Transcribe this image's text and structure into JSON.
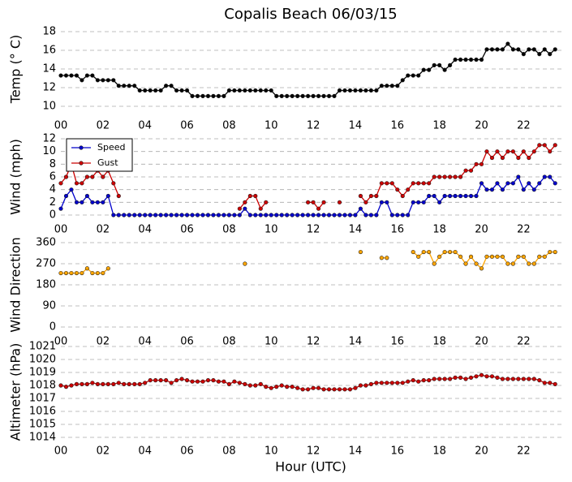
{
  "chart_data": {
    "type": "line",
    "title": "Copalis Beach 06/03/15",
    "xlabel": "Hour (UTC)",
    "xlim": [
      0,
      23.8
    ],
    "xticks": [
      {
        "value": 0,
        "label": "00"
      },
      {
        "value": 2,
        "label": "02"
      },
      {
        "value": 4,
        "label": "04"
      },
      {
        "value": 6,
        "label": "06"
      },
      {
        "value": 8,
        "label": "08"
      },
      {
        "value": 10,
        "label": "10"
      },
      {
        "value": 12,
        "label": "12"
      },
      {
        "value": 14,
        "label": "14"
      },
      {
        "value": 16,
        "label": "16"
      },
      {
        "value": 18,
        "label": "18"
      },
      {
        "value": 20,
        "label": "20"
      },
      {
        "value": 22,
        "label": "22"
      }
    ],
    "grid": true,
    "x": [
      0,
      0.25,
      0.5,
      0.75,
      1,
      1.25,
      1.5,
      1.75,
      2,
      2.25,
      2.5,
      2.75,
      3,
      3.25,
      3.5,
      3.75,
      4,
      4.25,
      4.5,
      4.75,
      5,
      5.25,
      5.5,
      5.75,
      6,
      6.25,
      6.5,
      6.75,
      7,
      7.25,
      7.5,
      7.75,
      8,
      8.25,
      8.5,
      8.75,
      9,
      9.25,
      9.5,
      9.75,
      10,
      10.25,
      10.5,
      10.75,
      11,
      11.25,
      11.5,
      11.75,
      12,
      12.25,
      12.5,
      12.75,
      13,
      13.25,
      13.5,
      13.75,
      14,
      14.25,
      14.5,
      14.75,
      15,
      15.25,
      15.5,
      15.75,
      16,
      16.25,
      16.5,
      16.75,
      17,
      17.25,
      17.5,
      17.75,
      18,
      18.25,
      18.5,
      18.75,
      19,
      19.25,
      19.5,
      19.75,
      20,
      20.25,
      20.5,
      20.75,
      21,
      21.25,
      21.5,
      21.75,
      22,
      22.25,
      22.5,
      22.75,
      23,
      23.25,
      23.5
    ],
    "panels": [
      {
        "ylabel": "Temp (° C)",
        "ylim": [
          10,
          18
        ],
        "yticks": [
          10,
          12,
          14,
          16,
          18
        ],
        "series": [
          {
            "color": "#000000",
            "values": [
              13.3,
              13.3,
              13.3,
              13.3,
              12.8,
              13.3,
              13.3,
              12.8,
              12.8,
              12.8,
              12.8,
              12.2,
              12.2,
              12.2,
              12.2,
              11.7,
              11.7,
              11.7,
              11.7,
              11.7,
              12.2,
              12.2,
              11.7,
              11.7,
              11.7,
              11.1,
              11.1,
              11.1,
              11.1,
              11.1,
              11.1,
              11.1,
              11.7,
              11.7,
              11.7,
              11.7,
              11.7,
              11.7,
              11.7,
              11.7,
              11.7,
              11.1,
              11.1,
              11.1,
              11.1,
              11.1,
              11.1,
              11.1,
              11.1,
              11.1,
              11.1,
              11.1,
              11.1,
              11.7,
              11.7,
              11.7,
              11.7,
              11.7,
              11.7,
              11.7,
              11.7,
              12.2,
              12.2,
              12.2,
              12.2,
              12.8,
              13.3,
              13.3,
              13.3,
              13.9,
              13.9,
              14.4,
              14.4,
              13.9,
              14.4,
              15.0,
              15.0,
              15.0,
              15.0,
              15.0,
              15.0,
              16.1,
              16.1,
              16.1,
              16.1,
              16.7,
              16.1,
              16.1,
              15.6,
              16.1,
              16.1,
              15.6,
              16.1,
              15.6,
              16.1
            ]
          }
        ]
      },
      {
        "ylabel": "Wind (mph)",
        "ylim": [
          0,
          12
        ],
        "yticks": [
          0,
          2,
          4,
          6,
          8,
          10,
          12
        ],
        "legend": "upper left",
        "series": [
          {
            "name": "Speed",
            "color": "#0000cc",
            "values": [
              1,
              3,
              4,
              2,
              2,
              3,
              2,
              2,
              2,
              3,
              0,
              0,
              0,
              0,
              0,
              0,
              0,
              0,
              0,
              0,
              0,
              0,
              0,
              0,
              0,
              0,
              0,
              0,
              0,
              0,
              0,
              0,
              0,
              0,
              0,
              1,
              0,
              0,
              0,
              0,
              0,
              0,
              0,
              0,
              0,
              0,
              0,
              0,
              0,
              0,
              0,
              0,
              0,
              0,
              0,
              0,
              0,
              1,
              0,
              0,
              0,
              2,
              2,
              0,
              0,
              0,
              0,
              2,
              2,
              2,
              3,
              3,
              2,
              3,
              3,
              3,
              3,
              3,
              3,
              3,
              5,
              4,
              4,
              5,
              4,
              5,
              5,
              6,
              4,
              5,
              4,
              5,
              6,
              6,
              5
            ]
          },
          {
            "name": "Gust",
            "color": "#cc0000",
            "values": [
              5,
              6,
              8,
              5,
              5,
              6,
              6,
              7,
              6,
              7,
              5,
              3,
              null,
              null,
              null,
              null,
              null,
              null,
              null,
              null,
              null,
              null,
              null,
              null,
              null,
              null,
              null,
              null,
              null,
              null,
              null,
              null,
              null,
              null,
              1,
              2,
              3,
              3,
              1,
              2,
              null,
              null,
              null,
              null,
              null,
              null,
              null,
              2,
              2,
              1,
              2,
              null,
              null,
              2,
              null,
              null,
              null,
              3,
              2,
              3,
              3,
              5,
              5,
              5,
              4,
              3,
              4,
              5,
              5,
              5,
              5,
              6,
              6,
              6,
              6,
              6,
              6,
              7,
              7,
              8,
              8,
              10,
              9,
              10,
              9,
              10,
              10,
              9,
              10,
              9,
              10,
              11,
              11,
              10,
              11
            ]
          }
        ]
      },
      {
        "ylabel": "Wind Direction",
        "ylim": [
          0,
          360
        ],
        "yticks": [
          0,
          90,
          180,
          270,
          360
        ],
        "series": [
          {
            "color": "#ffa500",
            "values": [
              230,
              230,
              230,
              230,
              230,
              250,
              230,
              230,
              230,
              250,
              null,
              null,
              null,
              null,
              null,
              null,
              null,
              null,
              null,
              null,
              null,
              null,
              null,
              null,
              null,
              null,
              null,
              null,
              null,
              null,
              null,
              null,
              null,
              null,
              null,
              270,
              null,
              null,
              null,
              null,
              null,
              null,
              null,
              null,
              null,
              null,
              null,
              null,
              null,
              null,
              null,
              null,
              null,
              null,
              null,
              null,
              null,
              320,
              null,
              null,
              null,
              295,
              295,
              null,
              null,
              null,
              null,
              320,
              300,
              320,
              320,
              270,
              300,
              320,
              320,
              320,
              300,
              270,
              300,
              270,
              250,
              300,
              300,
              300,
              300,
              270,
              270,
              300,
              300,
              270,
              270,
              300,
              300,
              320,
              320
            ]
          }
        ]
      },
      {
        "ylabel": "Altimeter (hPa)",
        "ylim": [
          1014,
          1021
        ],
        "yticks": [
          1014,
          1015,
          1016,
          1017,
          1018,
          1019,
          1020,
          1021
        ],
        "series": [
          {
            "color": "#cc0000",
            "values": [
              1018.0,
              1017.9,
              1018.0,
              1018.1,
              1018.1,
              1018.1,
              1018.2,
              1018.1,
              1018.1,
              1018.1,
              1018.1,
              1018.2,
              1018.1,
              1018.1,
              1018.1,
              1018.1,
              1018.2,
              1018.4,
              1018.4,
              1018.4,
              1018.4,
              1018.2,
              1018.4,
              1018.5,
              1018.4,
              1018.3,
              1018.3,
              1018.3,
              1018.4,
              1018.4,
              1018.3,
              1018.3,
              1018.1,
              1018.3,
              1018.2,
              1018.1,
              1018.0,
              1018.0,
              1018.1,
              1017.9,
              1017.8,
              1017.9,
              1018.0,
              1017.9,
              1017.9,
              1017.8,
              1017.7,
              1017.7,
              1017.8,
              1017.8,
              1017.7,
              1017.7,
              1017.7,
              1017.7,
              1017.7,
              1017.7,
              1017.8,
              1018.0,
              1018.0,
              1018.1,
              1018.2,
              1018.2,
              1018.2,
              1018.2,
              1018.2,
              1018.2,
              1018.3,
              1018.4,
              1018.3,
              1018.4,
              1018.4,
              1018.5,
              1018.5,
              1018.5,
              1018.5,
              1018.6,
              1018.6,
              1018.5,
              1018.6,
              1018.7,
              1018.8,
              1018.7,
              1018.7,
              1018.6,
              1018.5,
              1018.5,
              1018.5,
              1018.5,
              1018.5,
              1018.5,
              1018.5,
              1018.4,
              1018.2,
              1018.2,
              1018.1
            ]
          }
        ]
      }
    ]
  }
}
